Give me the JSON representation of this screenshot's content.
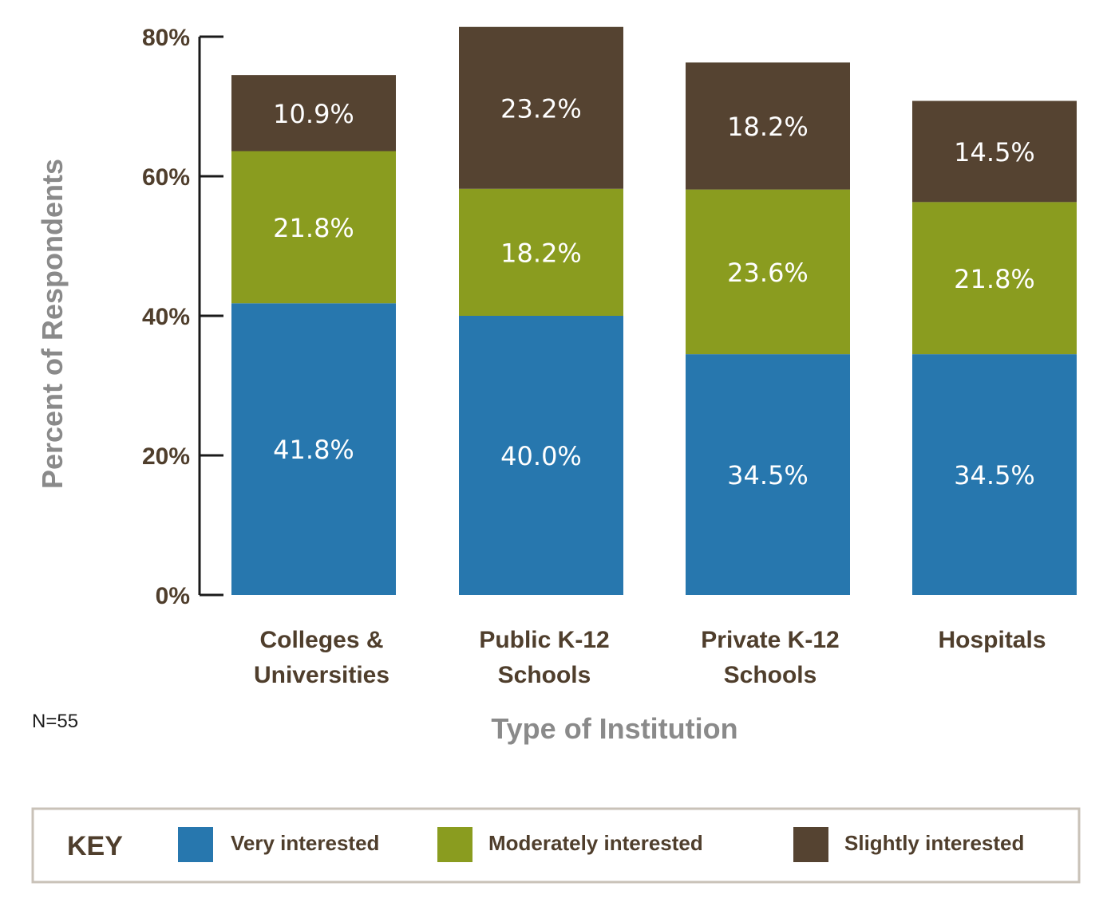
{
  "chart_data": {
    "type": "bar",
    "stacked": true,
    "categories": [
      [
        "Colleges &",
        "Universities"
      ],
      [
        "Public K-12",
        "Schools"
      ],
      [
        "Private K-12",
        "Schools"
      ],
      [
        "Hospitals"
      ]
    ],
    "series": [
      {
        "name": "Very interested",
        "color": "#2777ae",
        "values": [
          41.8,
          40.0,
          34.5,
          34.5
        ],
        "labels": [
          "41.8%",
          "40.0%",
          "34.5%",
          "34.5%"
        ]
      },
      {
        "name": "Moderately interested",
        "color": "#8a9c1f",
        "values": [
          21.8,
          18.2,
          23.6,
          21.8
        ],
        "labels": [
          "21.8%",
          "18.2%",
          "23.6%",
          "21.8%"
        ]
      },
      {
        "name": "Slightly interested",
        "color": "#554331",
        "values": [
          10.9,
          23.2,
          18.2,
          14.5
        ],
        "labels": [
          "10.9%",
          "23.2%",
          "18.2%",
          "14.5%"
        ]
      }
    ],
    "xlabel": "Type of Institution",
    "ylabel": "Percent of Respondents",
    "ylim": [
      0,
      80
    ],
    "yticks": [
      0,
      20,
      40,
      60,
      80
    ],
    "ytick_labels": [
      "0%",
      "20%",
      "40%",
      "60%",
      "80%"
    ],
    "note": "N=55",
    "legend": {
      "title": "KEY",
      "position": "bottom"
    },
    "grid": false
  }
}
